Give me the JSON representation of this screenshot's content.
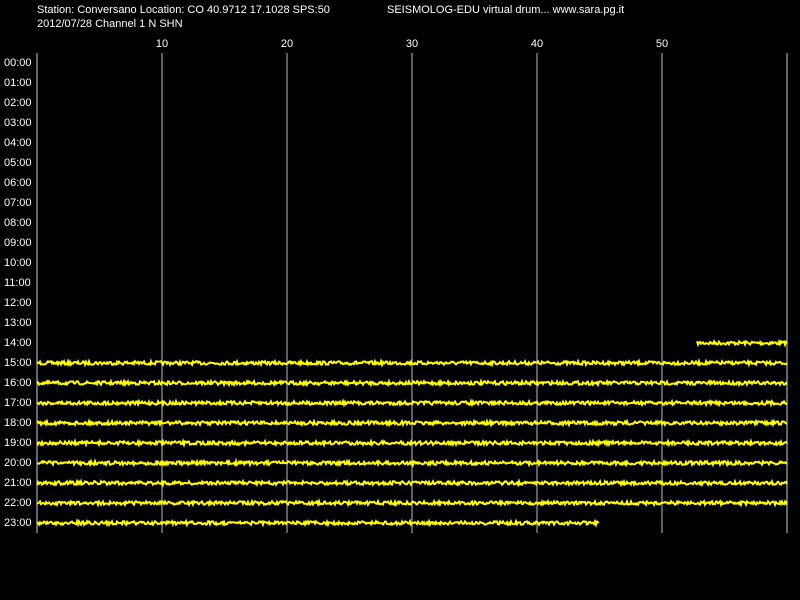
{
  "chart_data": {
    "type": "seismogram",
    "title": "Station: Conversano Location: CO 40.9712 17.1028 SPS:50",
    "subtitle": "2012/07/28  Channel 1 N SHN",
    "annotation": "SEISMOLOG-EDU virtual drum... www.sara.pg.it",
    "categories": [
      "00:00",
      "01:00",
      "02:00",
      "03:00",
      "04:00",
      "05:00",
      "06:00",
      "07:00",
      "08:00",
      "09:00",
      "10:00",
      "11:00",
      "12:00",
      "13:00",
      "14:00",
      "15:00",
      "16:00",
      "17:00",
      "18:00",
      "19:00",
      "20:00",
      "21:00",
      "22:00",
      "23:00"
    ],
    "trace_start": [
      null,
      null,
      null,
      null,
      null,
      null,
      null,
      null,
      null,
      null,
      null,
      null,
      null,
      null,
      52.8,
      0,
      0,
      0,
      0,
      0,
      0,
      0,
      0,
      0
    ],
    "trace_end": [
      null,
      null,
      null,
      null,
      null,
      null,
      null,
      null,
      null,
      null,
      null,
      null,
      null,
      null,
      60,
      60,
      60,
      60,
      60,
      60,
      60,
      60,
      60,
      45
    ],
    "xlim": [
      0,
      60
    ],
    "xticks": [
      10,
      20,
      30,
      40,
      50
    ],
    "grid": true,
    "color": "#ffff00"
  }
}
